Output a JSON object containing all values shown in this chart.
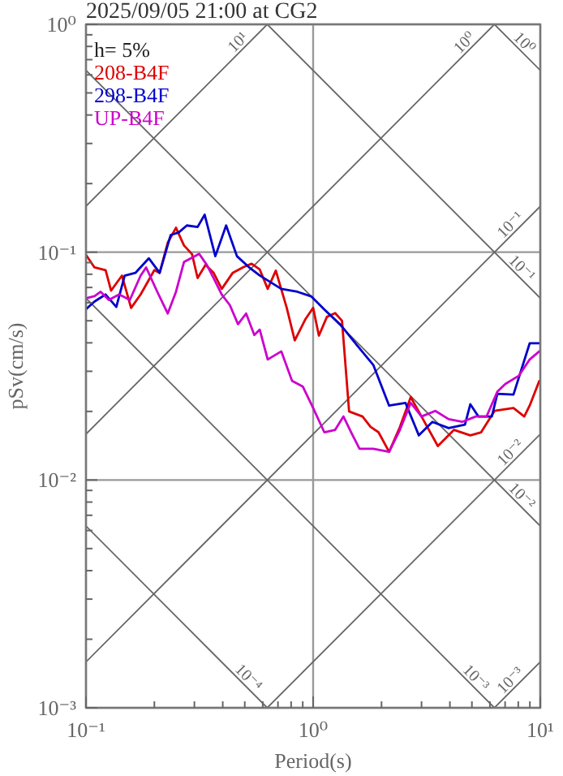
{
  "chart_data": {
    "type": "line",
    "title": "2025/09/05 21:00 at CG2",
    "xlabel": "Period(s)",
    "ylabel": "pSv(cm/s)",
    "annotations": [
      "h= 5%"
    ],
    "log": "xy",
    "grid": true,
    "legend": "top left",
    "line_style": "solid",
    "marker": "none",
    "xlim": [
      0.1,
      10
    ],
    "ylim": [
      0.001,
      1
    ],
    "xticks": [
      {
        "value": 0.1,
        "label": "10⁻¹"
      },
      {
        "value": 0.2,
        "label": null
      },
      {
        "value": 0.3,
        "label": null
      },
      {
        "value": 0.4,
        "label": null
      },
      {
        "value": 0.5,
        "label": null
      },
      {
        "value": 0.6,
        "label": null
      },
      {
        "value": 0.7,
        "label": null
      },
      {
        "value": 0.8,
        "label": null
      },
      {
        "value": 0.9,
        "label": null
      },
      {
        "value": 1,
        "label": "10⁰"
      },
      {
        "value": 2,
        "label": null
      },
      {
        "value": 3,
        "label": null
      },
      {
        "value": 4,
        "label": null
      },
      {
        "value": 5,
        "label": null
      },
      {
        "value": 6,
        "label": null
      },
      {
        "value": 7,
        "label": null
      },
      {
        "value": 8,
        "label": null
      },
      {
        "value": 9,
        "label": null
      },
      {
        "value": 10,
        "label": "10¹"
      }
    ],
    "yticks": [
      {
        "value": 0.001,
        "label": "10⁻³"
      },
      {
        "value": 0.002,
        "label": null
      },
      {
        "value": 0.003,
        "label": null
      },
      {
        "value": 0.004,
        "label": null
      },
      {
        "value": 0.005,
        "label": null
      },
      {
        "value": 0.006,
        "label": null
      },
      {
        "value": 0.007,
        "label": null
      },
      {
        "value": 0.008,
        "label": null
      },
      {
        "value": 0.009,
        "label": null
      },
      {
        "value": 0.01,
        "label": "10⁻²"
      },
      {
        "value": 0.02,
        "label": null
      },
      {
        "value": 0.03,
        "label": null
      },
      {
        "value": 0.04,
        "label": null
      },
      {
        "value": 0.05,
        "label": null
      },
      {
        "value": 0.06,
        "label": null
      },
      {
        "value": 0.07,
        "label": null
      },
      {
        "value": 0.08,
        "label": null
      },
      {
        "value": 0.09,
        "label": null
      },
      {
        "value": 0.1,
        "label": "10⁻¹"
      },
      {
        "value": 0.2,
        "label": null
      },
      {
        "value": 0.3,
        "label": null
      },
      {
        "value": 0.4,
        "label": null
      },
      {
        "value": 0.5,
        "label": null
      },
      {
        "value": 0.6,
        "label": null
      },
      {
        "value": 0.7,
        "label": null
      },
      {
        "value": 0.8,
        "label": null
      },
      {
        "value": 0.9,
        "label": null
      },
      {
        "value": 1,
        "label": "10⁰"
      }
    ],
    "series": [
      {
        "name": "208-B4F",
        "color": "#dd0000",
        "x": [
          0.1,
          0.109,
          0.122,
          0.129,
          0.144,
          0.158,
          0.174,
          0.2,
          0.211,
          0.229,
          0.249,
          0.27,
          0.293,
          0.31,
          0.336,
          0.365,
          0.396,
          0.442,
          0.494,
          0.536,
          0.582,
          0.631,
          0.685,
          0.765,
          0.83,
          0.927,
          1.0,
          1.06,
          1.15,
          1.25,
          1.34,
          1.44,
          1.65,
          1.79,
          1.94,
          2.16,
          2.41,
          2.69,
          3.0,
          3.54,
          4.17,
          4.92,
          5.49,
          6.29,
          7.62,
          8.5,
          8.98,
          9.9
        ],
        "values": [
          0.0972,
          0.0857,
          0.0834,
          0.0678,
          0.0789,
          0.0569,
          0.0652,
          0.0834,
          0.0811,
          0.11,
          0.128,
          0.107,
          0.098,
          0.077,
          0.088,
          0.081,
          0.069,
          0.081,
          0.086,
          0.089,
          0.084,
          0.069,
          0.083,
          0.057,
          0.041,
          0.051,
          0.057,
          0.043,
          0.052,
          0.054,
          0.05,
          0.02,
          0.019,
          0.0171,
          0.0162,
          0.0133,
          0.0171,
          0.0231,
          0.019,
          0.0141,
          0.0166,
          0.0157,
          0.0162,
          0.0201,
          0.0207,
          0.019,
          0.0212,
          0.0272
        ]
      },
      {
        "name": "298-B4F",
        "color": "#0000cc",
        "x": [
          0.1,
          0.109,
          0.122,
          0.136,
          0.148,
          0.165,
          0.189,
          0.211,
          0.236,
          0.256,
          0.278,
          0.31,
          0.333,
          0.371,
          0.414,
          0.462,
          0.521,
          0.582,
          0.724,
          0.853,
          0.98,
          1.12,
          1.32,
          1.56,
          1.84,
          2.16,
          2.55,
          2.92,
          3.35,
          3.95,
          4.66,
          4.92,
          5.34,
          6.12,
          6.47,
          7.62,
          8.98,
          9.9
        ],
        "values": [
          0.0562,
          0.0607,
          0.0652,
          0.0575,
          0.0789,
          0.0811,
          0.094,
          0.0811,
          0.119,
          0.122,
          0.131,
          0.129,
          0.146,
          0.096,
          0.131,
          0.096,
          0.086,
          0.079,
          0.069,
          0.067,
          0.064,
          0.056,
          0.048,
          0.039,
          0.032,
          0.0212,
          0.0218,
          0.0157,
          0.018,
          0.0169,
          0.0175,
          0.0215,
          0.019,
          0.019,
          0.0239,
          0.0237,
          0.0398,
          0.0398
        ]
      },
      {
        "name": "UP-B4F",
        "color": "#cc00cc",
        "x": [
          0.1,
          0.109,
          0.116,
          0.126,
          0.14,
          0.156,
          0.174,
          0.184,
          0.206,
          0.229,
          0.249,
          0.27,
          0.315,
          0.34,
          0.365,
          0.396,
          0.43,
          0.467,
          0.507,
          0.551,
          0.582,
          0.631,
          0.724,
          0.808,
          0.901,
          1.0,
          1.12,
          1.25,
          1.36,
          1.47,
          1.6,
          1.84,
          2.16,
          2.41,
          2.69,
          3.0,
          3.45,
          3.95,
          4.53,
          5.2,
          5.8,
          6.47,
          7.02,
          8.05,
          8.98,
          9.9
        ],
        "values": [
          0.0628,
          0.0641,
          0.067,
          0.0617,
          0.0652,
          0.0617,
          0.0789,
          0.0857,
          0.067,
          0.0538,
          0.067,
          0.0905,
          0.0983,
          0.0881,
          0.0768,
          0.0652,
          0.0585,
          0.0483,
          0.0538,
          0.0433,
          0.0457,
          0.0338,
          0.0367,
          0.0272,
          0.0257,
          0.0207,
          0.0162,
          0.0166,
          0.019,
          0.0162,
          0.0137,
          0.0137,
          0.0133,
          0.0166,
          0.0218,
          0.019,
          0.0201,
          0.0185,
          0.018,
          0.019,
          0.019,
          0.0244,
          0.0264,
          0.0287,
          0.0338,
          0.0367
        ]
      },
      {
        "name": "10¹",
        "color": "#666666",
        "line_style": "solid",
        "x": [
          0.1,
          0.628
        ],
        "values": [
          0.159,
          1
        ]
      },
      {
        "name": "10⁰",
        "color": "#666666",
        "line_style": "solid",
        "x": [
          0.1,
          6.28
        ],
        "values": [
          0.0159,
          1
        ]
      },
      {
        "name": "10⁻¹",
        "color": "#666666",
        "line_style": "solid",
        "x": [
          0.1,
          10
        ],
        "values": [
          0.00159,
          0.159
        ]
      },
      {
        "name": "10⁻²",
        "color": "#666666",
        "line_style": "solid",
        "x": [
          0.628,
          10
        ],
        "values": [
          0.001,
          0.0159
        ]
      },
      {
        "name": "10⁻³",
        "color": "#666666",
        "line_style": "solid",
        "x": [
          6.28,
          10
        ],
        "values": [
          0.001,
          0.00159
        ]
      },
      {
        "name": "10⁰",
        "color": "#666666",
        "line_style": "solid",
        "x": [
          6.28,
          10
        ],
        "values": [
          1,
          0.628
        ]
      },
      {
        "name": "10⁻¹",
        "color": "#666666",
        "line_style": "solid",
        "x": [
          0.628,
          10
        ],
        "values": [
          1,
          0.0628
        ]
      },
      {
        "name": "10⁻²",
        "color": "#666666",
        "line_style": "solid",
        "x": [
          0.1,
          10
        ],
        "values": [
          0.628,
          0.00628
        ]
      },
      {
        "name": "10⁻³",
        "color": "#666666",
        "line_style": "solid",
        "x": [
          0.1,
          6.28
        ],
        "values": [
          0.0628,
          0.001
        ]
      },
      {
        "name": "10⁻⁴",
        "color": "#666666",
        "line_style": "solid",
        "x": [
          0.1,
          0.628
        ],
        "values": [
          0.00628,
          0.001
        ]
      }
    ]
  }
}
